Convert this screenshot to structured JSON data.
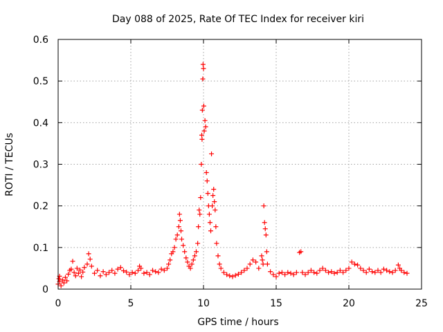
{
  "chart_data": {
    "type": "scatter",
    "title": "Day 088 of 2025, Rate Of TEC Index for receiver kiri",
    "xlabel": "GPS time / hours",
    "ylabel": "ROTI / TECUs",
    "xlim": [
      0,
      25
    ],
    "ylim": [
      0,
      0.6
    ],
    "x_ticks": [
      "0",
      "5",
      "10",
      "15",
      "20",
      "25"
    ],
    "y_ticks": [
      "0",
      "0.1",
      "0.2",
      "0.3",
      "0.4",
      "0.5",
      "0.6"
    ],
    "grid": true,
    "legend": "none",
    "marker": "plus",
    "color": "#ff0000",
    "series": [
      {
        "points": [
          [
            0.0,
            0.012
          ],
          [
            0.05,
            0.025
          ],
          [
            0.1,
            0.018
          ],
          [
            0.1,
            0.031
          ],
          [
            0.2,
            0.008
          ],
          [
            0.3,
            0.022
          ],
          [
            0.4,
            0.015
          ],
          [
            0.5,
            0.028
          ],
          [
            0.6,
            0.02
          ],
          [
            0.7,
            0.036
          ],
          [
            0.8,
            0.045
          ],
          [
            0.9,
            0.048
          ],
          [
            1.0,
            0.067
          ],
          [
            1.1,
            0.04
          ],
          [
            1.2,
            0.032
          ],
          [
            1.3,
            0.05
          ],
          [
            1.4,
            0.038
          ],
          [
            1.5,
            0.046
          ],
          [
            1.6,
            0.03
          ],
          [
            1.7,
            0.041
          ],
          [
            1.8,
            0.052
          ],
          [
            2.0,
            0.06
          ],
          [
            2.1,
            0.085
          ],
          [
            2.2,
            0.072
          ],
          [
            2.3,
            0.055
          ],
          [
            2.5,
            0.038
          ],
          [
            2.7,
            0.045
          ],
          [
            2.9,
            0.032
          ],
          [
            3.1,
            0.042
          ],
          [
            3.3,
            0.035
          ],
          [
            3.5,
            0.04
          ],
          [
            3.7,
            0.045
          ],
          [
            3.9,
            0.038
          ],
          [
            4.1,
            0.048
          ],
          [
            4.3,
            0.052
          ],
          [
            4.5,
            0.044
          ],
          [
            4.7,
            0.041
          ],
          [
            4.9,
            0.035
          ],
          [
            5.1,
            0.04
          ],
          [
            5.3,
            0.038
          ],
          [
            5.5,
            0.045
          ],
          [
            5.6,
            0.055
          ],
          [
            5.7,
            0.05
          ],
          [
            5.9,
            0.038
          ],
          [
            6.1,
            0.04
          ],
          [
            6.3,
            0.035
          ],
          [
            6.5,
            0.045
          ],
          [
            6.7,
            0.042
          ],
          [
            6.9,
            0.04
          ],
          [
            7.1,
            0.048
          ],
          [
            7.3,
            0.045
          ],
          [
            7.5,
            0.05
          ],
          [
            7.6,
            0.06
          ],
          [
            7.7,
            0.07
          ],
          [
            7.8,
            0.085
          ],
          [
            7.9,
            0.09
          ],
          [
            8.0,
            0.1
          ],
          [
            8.1,
            0.12
          ],
          [
            8.2,
            0.13
          ],
          [
            8.3,
            0.15
          ],
          [
            8.35,
            0.18
          ],
          [
            8.4,
            0.165
          ],
          [
            8.45,
            0.14
          ],
          [
            8.5,
            0.12
          ],
          [
            8.6,
            0.105
          ],
          [
            8.7,
            0.09
          ],
          [
            8.8,
            0.075
          ],
          [
            8.9,
            0.065
          ],
          [
            9.0,
            0.055
          ],
          [
            9.1,
            0.05
          ],
          [
            9.2,
            0.06
          ],
          [
            9.3,
            0.07
          ],
          [
            9.4,
            0.08
          ],
          [
            9.5,
            0.09
          ],
          [
            9.6,
            0.11
          ],
          [
            9.65,
            0.15
          ],
          [
            9.7,
            0.19
          ],
          [
            9.75,
            0.18
          ],
          [
            9.8,
            0.22
          ],
          [
            9.85,
            0.3
          ],
          [
            9.88,
            0.37
          ],
          [
            9.9,
            0.36
          ],
          [
            9.92,
            0.43
          ],
          [
            9.95,
            0.505
          ],
          [
            9.97,
            0.54
          ],
          [
            10.0,
            0.53
          ],
          [
            10.02,
            0.44
          ],
          [
            10.05,
            0.38
          ],
          [
            10.1,
            0.405
          ],
          [
            10.15,
            0.39
          ],
          [
            10.2,
            0.28
          ],
          [
            10.25,
            0.26
          ],
          [
            10.3,
            0.23
          ],
          [
            10.35,
            0.2
          ],
          [
            10.4,
            0.18
          ],
          [
            10.45,
            0.16
          ],
          [
            10.5,
            0.14
          ],
          [
            10.55,
            0.325
          ],
          [
            10.6,
            0.2
          ],
          [
            10.65,
            0.225
          ],
          [
            10.7,
            0.24
          ],
          [
            10.75,
            0.21
          ],
          [
            10.8,
            0.19
          ],
          [
            10.85,
            0.15
          ],
          [
            10.9,
            0.11
          ],
          [
            11.0,
            0.08
          ],
          [
            11.1,
            0.06
          ],
          [
            11.2,
            0.05
          ],
          [
            11.4,
            0.04
          ],
          [
            11.6,
            0.035
          ],
          [
            11.8,
            0.032
          ],
          [
            12.0,
            0.03
          ],
          [
            12.2,
            0.033
          ],
          [
            12.4,
            0.036
          ],
          [
            12.6,
            0.04
          ],
          [
            12.8,
            0.045
          ],
          [
            13.0,
            0.05
          ],
          [
            13.2,
            0.06
          ],
          [
            13.4,
            0.07
          ],
          [
            13.6,
            0.065
          ],
          [
            13.8,
            0.05
          ],
          [
            14.0,
            0.08
          ],
          [
            14.05,
            0.07
          ],
          [
            14.1,
            0.06
          ],
          [
            14.15,
            0.2
          ],
          [
            14.2,
            0.16
          ],
          [
            14.25,
            0.145
          ],
          [
            14.3,
            0.13
          ],
          [
            14.35,
            0.09
          ],
          [
            14.4,
            0.06
          ],
          [
            14.6,
            0.042
          ],
          [
            14.8,
            0.035
          ],
          [
            15.0,
            0.03
          ],
          [
            15.2,
            0.038
          ],
          [
            15.4,
            0.04
          ],
          [
            15.6,
            0.035
          ],
          [
            15.8,
            0.04
          ],
          [
            16.0,
            0.038
          ],
          [
            16.2,
            0.035
          ],
          [
            16.4,
            0.04
          ],
          [
            16.6,
            0.088
          ],
          [
            16.7,
            0.09
          ],
          [
            16.8,
            0.04
          ],
          [
            17.0,
            0.035
          ],
          [
            17.2,
            0.04
          ],
          [
            17.4,
            0.045
          ],
          [
            17.6,
            0.04
          ],
          [
            17.8,
            0.038
          ],
          [
            18.0,
            0.045
          ],
          [
            18.2,
            0.05
          ],
          [
            18.4,
            0.045
          ],
          [
            18.6,
            0.04
          ],
          [
            18.8,
            0.042
          ],
          [
            19.0,
            0.038
          ],
          [
            19.2,
            0.04
          ],
          [
            19.4,
            0.045
          ],
          [
            19.6,
            0.04
          ],
          [
            19.8,
            0.045
          ],
          [
            20.0,
            0.05
          ],
          [
            20.2,
            0.065
          ],
          [
            20.4,
            0.06
          ],
          [
            20.6,
            0.058
          ],
          [
            20.8,
            0.05
          ],
          [
            21.0,
            0.045
          ],
          [
            21.2,
            0.04
          ],
          [
            21.4,
            0.048
          ],
          [
            21.6,
            0.042
          ],
          [
            21.8,
            0.04
          ],
          [
            22.0,
            0.045
          ],
          [
            22.2,
            0.04
          ],
          [
            22.4,
            0.048
          ],
          [
            22.6,
            0.045
          ],
          [
            22.8,
            0.042
          ],
          [
            23.0,
            0.04
          ],
          [
            23.2,
            0.045
          ],
          [
            23.4,
            0.058
          ],
          [
            23.5,
            0.05
          ],
          [
            23.6,
            0.045
          ],
          [
            23.8,
            0.04
          ],
          [
            24.0,
            0.038
          ]
        ]
      }
    ]
  }
}
